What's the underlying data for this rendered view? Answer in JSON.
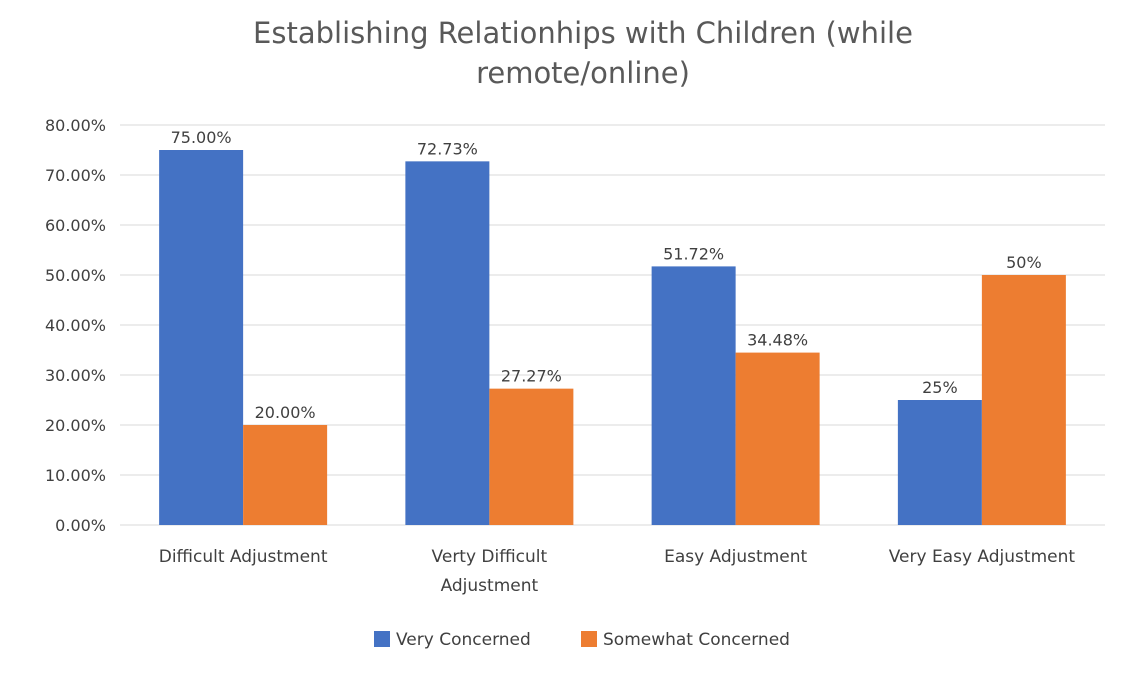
{
  "chart_data": {
    "type": "bar",
    "title_lines": [
      "Establishing Relationhips with Children (while",
      "remote/online)"
    ],
    "categories": [
      [
        "Difficult Adjustment"
      ],
      [
        "Verty Difficult",
        "Adjustment"
      ],
      [
        "Easy Adjustment"
      ],
      [
        "Very Easy Adjustment"
      ]
    ],
    "series": [
      {
        "name": "Very Concerned",
        "color": "#4472c4",
        "values": [
          75.0,
          72.73,
          51.72,
          25.0
        ],
        "labels": [
          "75.00%",
          "72.73%",
          "51.72%",
          "25%"
        ]
      },
      {
        "name": "Somewhat Concerned",
        "color": "#ed7d31",
        "values": [
          20.0,
          27.27,
          34.48,
          50.0
        ],
        "labels": [
          "20.00%",
          "27.27%",
          "34.48%",
          "50%"
        ]
      }
    ],
    "ylim": [
      0,
      80
    ],
    "y_ticks": [
      "0.00%",
      "10.00%",
      "20.00%",
      "30.00%",
      "40.00%",
      "50.00%",
      "60.00%",
      "70.00%",
      "80.00%"
    ],
    "grid": true,
    "legend_position": "bottom"
  }
}
